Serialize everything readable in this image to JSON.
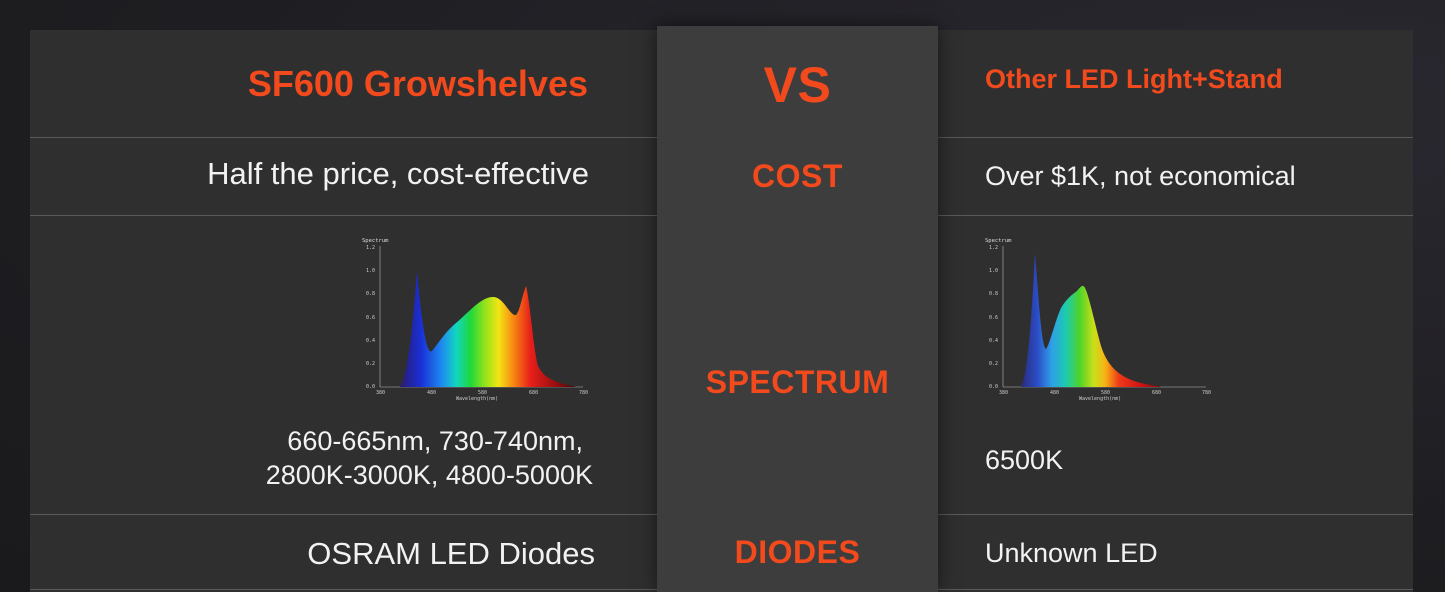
{
  "header": {
    "left_title": "SF600 Growshelves",
    "vs_label": "VS",
    "right_title": "Other LED Light+Stand"
  },
  "rows": {
    "cost": {
      "label": "COST",
      "left": "Half the price, cost-effective",
      "right": "Over $1K, not economical"
    },
    "spectrum": {
      "label": "SPECTRUM",
      "left_line1": "660-665nm, 730-740nm,",
      "left_line2": "2800K-3000K, 4800-5000K",
      "right": "6500K"
    },
    "diodes": {
      "label": "DIODES",
      "left": "OSRAM LED Diodes",
      "right": "Unknown LED"
    }
  },
  "spectrum_chart": {
    "title": "Spectrum",
    "xlabel": "Wavelength(nm)",
    "y_ticks": [
      "1.2",
      "1.0",
      "0.8",
      "0.6",
      "0.4",
      "0.2",
      "0.0"
    ],
    "x_ticks": [
      "380",
      "480",
      "580",
      "680",
      "780"
    ]
  },
  "colors": {
    "accent": "#f34a1d",
    "panel": "#2f2f2f",
    "center_panel": "#3d3d3d"
  }
}
